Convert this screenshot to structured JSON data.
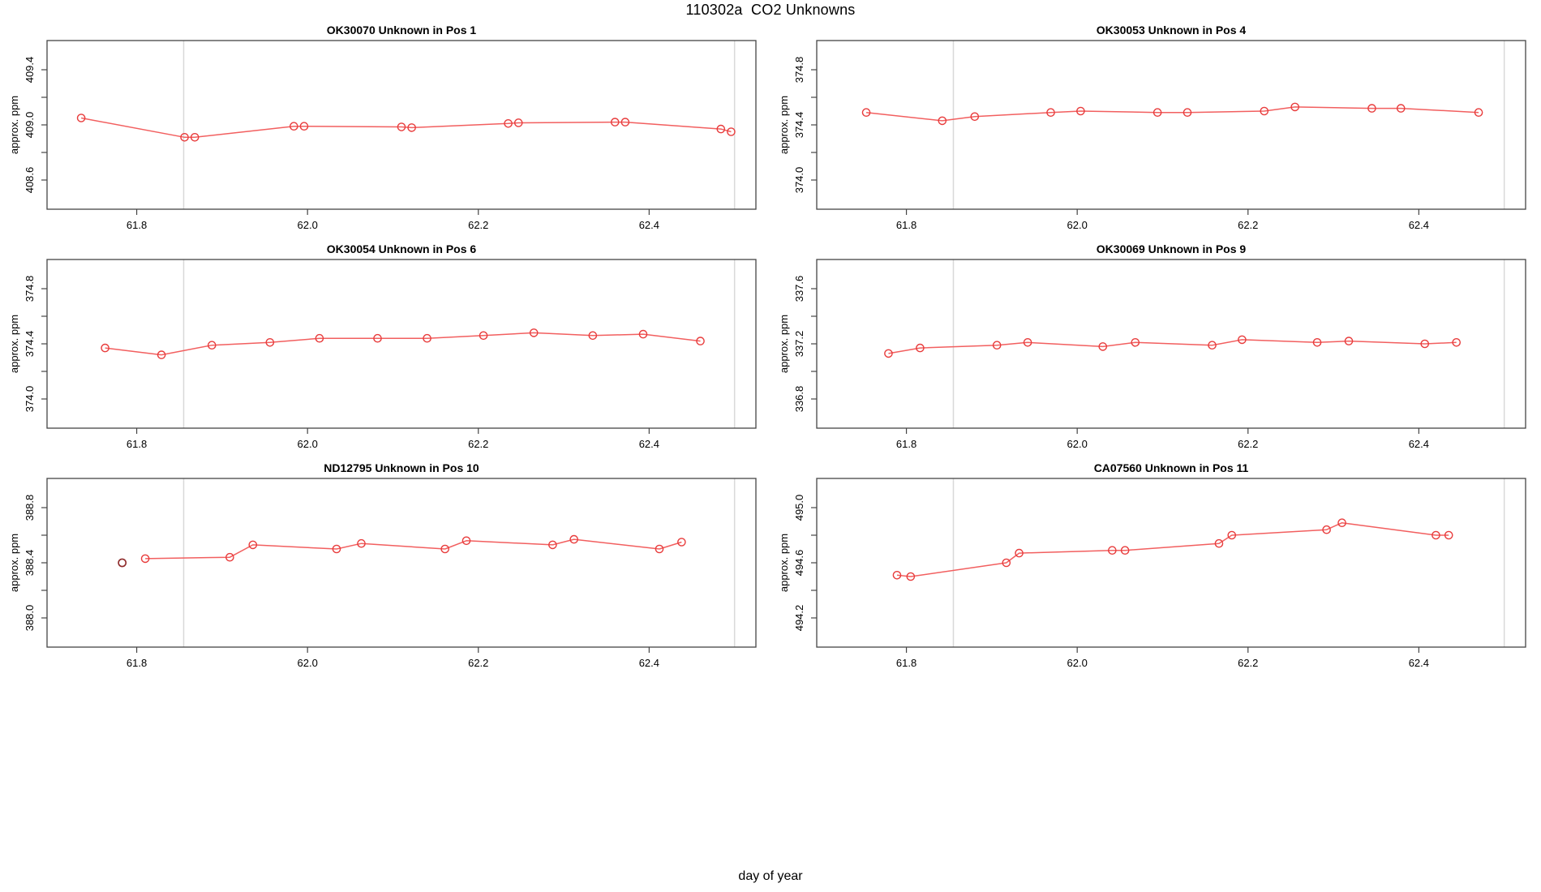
{
  "figure": {
    "main_title": "110302a  CO2 Unknowns",
    "x_axis_label": "day of year",
    "y_axis_label": "approx. ppm"
  },
  "style": {
    "line_color": "#f25f5f",
    "point_color": "#e83c3c",
    "dark_point_color": "#8e2a2a",
    "ref_line_color": "#d9d9d9",
    "box_color": "#454545",
    "text_color": "#000000"
  },
  "chart_data": [
    {
      "type": "line",
      "title": "OK30070   Unknown in Pos 1",
      "sample_code": "OK30070",
      "position": "Pos 1",
      "ylabel": "approx. ppm",
      "y_tick_labels": [
        "408.6",
        "409.0",
        "409.4"
      ],
      "y_tick_values": [
        408.6,
        409.0,
        409.4
      ],
      "x_tick_labels": [
        "61.8",
        "62.0",
        "62.2",
        "62.4"
      ],
      "x_tick_values": [
        61.8,
        62.0,
        62.2,
        62.4
      ],
      "ref_lines_x": [
        61.855,
        62.5
      ],
      "x": [
        61.735,
        61.856,
        61.868,
        61.984,
        61.996,
        62.11,
        62.122,
        62.235,
        62.247,
        62.36,
        62.372,
        62.484,
        62.496
      ],
      "y": [
        409.05,
        408.91,
        408.91,
        408.99,
        408.99,
        408.985,
        408.98,
        409.01,
        409.015,
        409.02,
        409.02,
        408.97,
        408.95
      ]
    },
    {
      "type": "line",
      "title": "OK30053   Unknown in Pos 4",
      "sample_code": "OK30053",
      "position": "Pos 4",
      "ylabel": "approx. ppm",
      "y_tick_labels": [
        "374.0",
        "374.4",
        "374.8"
      ],
      "y_tick_values": [
        374.0,
        374.4,
        374.8
      ],
      "x_tick_labels": [
        "61.8",
        "62.0",
        "62.2",
        "62.4"
      ],
      "x_tick_values": [
        61.8,
        62.0,
        62.2,
        62.4
      ],
      "ref_lines_x": [
        61.855,
        62.5
      ],
      "x": [
        61.753,
        61.842,
        61.88,
        61.969,
        62.004,
        62.094,
        62.129,
        62.219,
        62.255,
        62.345,
        62.379,
        62.47
      ],
      "y": [
        374.49,
        374.43,
        374.46,
        374.49,
        374.5,
        374.49,
        374.49,
        374.5,
        374.53,
        374.52,
        374.52,
        374.49
      ]
    },
    {
      "type": "line",
      "title": "OK30054   Unknown in Pos 6",
      "sample_code": "OK30054",
      "position": "Pos 6",
      "ylabel": "approx. ppm",
      "y_tick_labels": [
        "374.0",
        "374.4",
        "374.8"
      ],
      "y_tick_values": [
        374.0,
        374.4,
        374.8
      ],
      "x_tick_labels": [
        "61.8",
        "62.0",
        "62.2",
        "62.4"
      ],
      "x_tick_values": [
        61.8,
        62.0,
        62.2,
        62.4
      ],
      "ref_lines_x": [
        61.855,
        62.5
      ],
      "x": [
        61.763,
        61.829,
        61.888,
        61.956,
        62.014,
        62.082,
        62.14,
        62.206,
        62.265,
        62.334,
        62.393,
        62.46
      ],
      "y": [
        374.37,
        374.32,
        374.39,
        374.41,
        374.44,
        374.44,
        374.44,
        374.46,
        374.48,
        374.46,
        374.47,
        374.42
      ]
    },
    {
      "type": "line",
      "title": "OK30069   Unknown in Pos 9",
      "sample_code": "OK30069",
      "position": "Pos 9",
      "ylabel": "approx. ppm",
      "y_tick_labels": [
        "336.8",
        "337.2",
        "337.6"
      ],
      "y_tick_values": [
        336.8,
        337.2,
        337.6
      ],
      "x_tick_labels": [
        "61.8",
        "62.0",
        "62.2",
        "62.4"
      ],
      "x_tick_values": [
        61.8,
        62.0,
        62.2,
        62.4
      ],
      "ref_lines_x": [
        61.855,
        62.5
      ],
      "x": [
        61.779,
        61.816,
        61.906,
        61.942,
        62.03,
        62.068,
        62.158,
        62.193,
        62.281,
        62.318,
        62.407,
        62.444
      ],
      "y": [
        337.13,
        337.17,
        337.19,
        337.21,
        337.18,
        337.21,
        337.19,
        337.23,
        337.21,
        337.22,
        337.2,
        337.21
      ]
    },
    {
      "type": "line",
      "title": "ND12795   Unknown in Pos 10",
      "sample_code": "ND12795",
      "position": "Pos 10",
      "ylabel": "approx. ppm",
      "y_tick_labels": [
        "388.0",
        "388.4",
        "388.8"
      ],
      "y_tick_values": [
        388.0,
        388.4,
        388.8
      ],
      "x_tick_labels": [
        "61.8",
        "62.0",
        "62.2",
        "62.4"
      ],
      "x_tick_values": [
        61.8,
        62.0,
        62.2,
        62.4
      ],
      "ref_lines_x": [
        61.855,
        62.5
      ],
      "isolated_point": {
        "x": 61.783,
        "y": 388.4
      },
      "x": [
        61.81,
        61.909,
        61.936,
        62.034,
        62.063,
        62.161,
        62.186,
        62.287,
        62.312,
        62.412,
        62.438
      ],
      "y": [
        388.43,
        388.44,
        388.53,
        388.5,
        388.54,
        388.5,
        388.56,
        388.53,
        388.57,
        388.5,
        388.55
      ]
    },
    {
      "type": "line",
      "title": "CA07560   Unknown in Pos 11",
      "sample_code": "CA07560",
      "position": "Pos 11",
      "ylabel": "approx. ppm",
      "y_tick_labels": [
        "494.2",
        "494.6",
        "495.0"
      ],
      "y_tick_values": [
        494.2,
        494.6,
        495.0
      ],
      "x_tick_labels": [
        "61.8",
        "62.0",
        "62.2",
        "62.4"
      ],
      "x_tick_values": [
        61.8,
        62.0,
        62.2,
        62.4
      ],
      "ref_lines_x": [
        61.855,
        62.5
      ],
      "x": [
        61.789,
        61.805,
        61.917,
        61.932,
        62.041,
        62.056,
        62.166,
        62.181,
        62.292,
        62.31,
        62.42,
        62.435
      ],
      "y": [
        494.51,
        494.5,
        494.6,
        494.67,
        494.69,
        494.69,
        494.74,
        494.8,
        494.84,
        494.89,
        494.8,
        494.8
      ]
    }
  ],
  "layout": {
    "x_domain": [
      61.695,
      62.525
    ],
    "grid": "off",
    "legend": "none",
    "panels_grid": "3 rows x 2 cols"
  }
}
